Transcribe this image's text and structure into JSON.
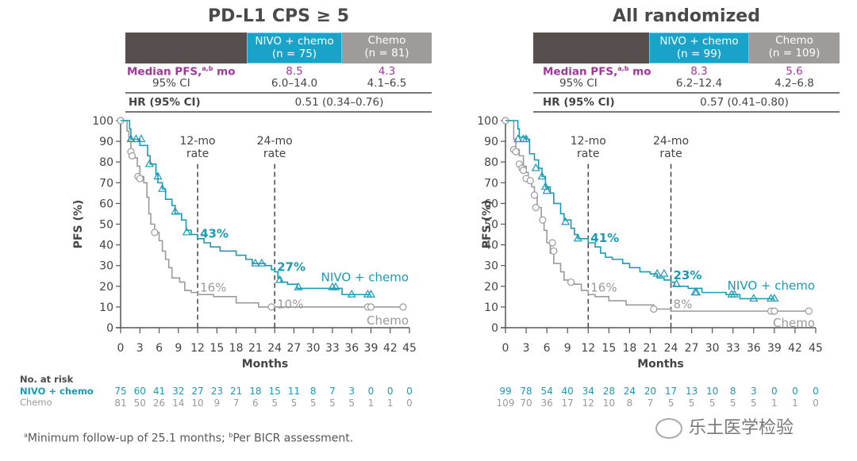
{
  "colors": {
    "nivo": "#1a9ab5",
    "chemo": "#9a9a9a",
    "magenta": "#a1379a",
    "header_dark": "#574f4e",
    "header_nivo": "#1aa3c9",
    "header_chemo": "#9f9b9a"
  },
  "panels": [
    {
      "title": "PD-L1 CPS ≥ 5",
      "table": {
        "nivo_header": [
          "NIVO + chemo",
          "(n = 75)"
        ],
        "chemo_header": [
          "Chemo",
          "(n = 81)"
        ],
        "median_label": "Median PFS,",
        "median_sup": "a,b",
        "median_unit": " mo",
        "median_nivo": "8.5",
        "median_chemo": "4.3",
        "ci_label": "95% CI",
        "ci_nivo": "6.0–14.0",
        "ci_chemo": "4.1–6.5",
        "hr_label": "HR (95% CI)",
        "hr_value": "0.51 (0.34–0.76)"
      },
      "risk": {
        "label": "No. at risk",
        "nivo_label": "NIVO + chemo",
        "chemo_label": "Chemo",
        "nivo": [
          75,
          60,
          41,
          32,
          27,
          23,
          21,
          18,
          15,
          11,
          8,
          7,
          3,
          0,
          0,
          0
        ],
        "chemo": [
          81,
          50,
          26,
          14,
          10,
          9,
          7,
          6,
          5,
          5,
          5,
          5,
          5,
          1,
          1,
          0
        ]
      }
    },
    {
      "title": "All randomized",
      "table": {
        "nivo_header": [
          "NIVO + chemo",
          "(n = 99)"
        ],
        "chemo_header": [
          "Chemo",
          "(n = 109)"
        ],
        "median_label": "Median PFS,",
        "median_sup": "a,b",
        "median_unit": " mo",
        "median_nivo": "8.3",
        "median_chemo": "5.6",
        "ci_label": "95% CI",
        "ci_nivo": "6.2–12.4",
        "ci_chemo": "4.2–6.8",
        "hr_label": "HR (95% CI)",
        "hr_value": "0.57 (0.41–0.80)"
      },
      "risk": {
        "label": "",
        "nivo_label": "",
        "chemo_label": "",
        "nivo": [
          99,
          78,
          54,
          40,
          34,
          28,
          24,
          20,
          17,
          13,
          10,
          8,
          3,
          0,
          0,
          0
        ],
        "chemo": [
          109,
          70,
          36,
          17,
          12,
          10,
          8,
          7,
          5,
          5,
          5,
          5,
          5,
          1,
          1,
          0
        ]
      }
    }
  ],
  "chart_data": [
    {
      "type": "line",
      "title": "PD-L1 CPS ≥ 5",
      "xlabel": "Months",
      "ylabel": "PFS (%)",
      "xlim": [
        0,
        45
      ],
      "ylim": [
        0,
        100
      ],
      "xticks": [
        0,
        3,
        6,
        9,
        12,
        15,
        18,
        21,
        24,
        27,
        30,
        33,
        36,
        39,
        42,
        45
      ],
      "yticks": [
        0,
        10,
        20,
        30,
        40,
        50,
        60,
        70,
        80,
        90,
        100
      ],
      "reference_lines": [
        {
          "x": 12,
          "label": [
            "12-mo",
            "rate"
          ]
        },
        {
          "x": 24,
          "label": [
            "24-mo",
            "rate"
          ]
        }
      ],
      "series": [
        {
          "name": "NIVO + chemo",
          "label": "NIVO + chemo",
          "step": true,
          "points": [
            [
              0,
              100
            ],
            [
              1,
              100
            ],
            [
              1.4,
              96
            ],
            [
              1.6,
              91
            ],
            [
              3,
              91
            ],
            [
              3,
              88
            ],
            [
              4.2,
              83
            ],
            [
              4.6,
              79
            ],
            [
              5.5,
              74
            ],
            [
              5.8,
              70
            ],
            [
              6.5,
              67
            ],
            [
              7,
              62
            ],
            [
              8,
              59
            ],
            [
              8.5,
              55
            ],
            [
              9.5,
              52
            ],
            [
              10.2,
              47
            ],
            [
              11,
              45
            ],
            [
              12,
              43
            ],
            [
              13,
              41
            ],
            [
              14,
              39
            ],
            [
              15.5,
              37
            ],
            [
              18,
              35
            ],
            [
              19.5,
              33
            ],
            [
              20.5,
              31
            ],
            [
              22.5,
              30
            ],
            [
              23.5,
              28
            ],
            [
              24,
              27
            ],
            [
              24.5,
              24
            ],
            [
              25,
              22
            ],
            [
              26,
              21
            ],
            [
              27.5,
              19
            ],
            [
              33,
              19
            ],
            [
              34.5,
              16
            ],
            [
              39,
              16
            ]
          ],
          "censors": [
            [
              1.6,
              91
            ],
            [
              2.4,
              91
            ],
            [
              3.2,
              91
            ],
            [
              4.5,
              79
            ],
            [
              5.8,
              73
            ],
            [
              6.5,
              67
            ],
            [
              8.5,
              56
            ],
            [
              10.3,
              46
            ],
            [
              21,
              31
            ],
            [
              22,
              31
            ],
            [
              24.8,
              23
            ],
            [
              27.7,
              19.5
            ],
            [
              33,
              19.5
            ],
            [
              33.5,
              19.5
            ],
            [
              36,
              16
            ],
            [
              38.5,
              16
            ],
            [
              39,
              16
            ]
          ],
          "annotations": [
            {
              "x": 12,
              "text": "43%"
            },
            {
              "x": 24,
              "text": "27%"
            }
          ]
        },
        {
          "name": "Chemo",
          "label": "Chemo",
          "step": true,
          "points": [
            [
              0,
              100
            ],
            [
              0.5,
              100
            ],
            [
              1,
              95
            ],
            [
              1.3,
              90
            ],
            [
              1.6,
              85
            ],
            [
              2,
              82
            ],
            [
              2.6,
              78
            ],
            [
              3,
              73
            ],
            [
              3.6,
              70
            ],
            [
              4.1,
              63
            ],
            [
              4.4,
              55
            ],
            [
              4.7,
              50
            ],
            [
              5.3,
              46
            ],
            [
              6,
              42
            ],
            [
              6.5,
              37
            ],
            [
              7,
              33
            ],
            [
              7.5,
              29
            ],
            [
              8,
              24
            ],
            [
              9.2,
              22
            ],
            [
              10,
              18
            ],
            [
              11,
              17
            ],
            [
              12,
              16
            ],
            [
              14.5,
              15
            ],
            [
              18,
              12
            ],
            [
              21.5,
              10
            ],
            [
              44,
              10
            ]
          ],
          "censors": [
            [
              0,
              100
            ],
            [
              1.6,
              85
            ],
            [
              1.8,
              83
            ],
            [
              2.7,
              73
            ],
            [
              3,
              72
            ],
            [
              5.3,
              46
            ],
            [
              23.5,
              10
            ],
            [
              38.5,
              10
            ],
            [
              39,
              10
            ],
            [
              44,
              10
            ]
          ],
          "annotations": [
            {
              "x": 12,
              "text": "16%"
            },
            {
              "x": 24,
              "text": "10%"
            }
          ]
        }
      ]
    },
    {
      "type": "line",
      "title": "All randomized",
      "xlabel": "Months",
      "ylabel": "PFS (%)",
      "xlim": [
        0,
        45
      ],
      "ylim": [
        0,
        100
      ],
      "xticks": [
        0,
        3,
        6,
        9,
        12,
        15,
        18,
        21,
        24,
        27,
        30,
        33,
        36,
        39,
        42,
        45
      ],
      "yticks": [
        0,
        10,
        20,
        30,
        40,
        50,
        60,
        70,
        80,
        90,
        100
      ],
      "reference_lines": [
        {
          "x": 12,
          "label": [
            "12-mo",
            "rate"
          ]
        },
        {
          "x": 24,
          "label": [
            "24-mo",
            "rate"
          ]
        }
      ],
      "series": [
        {
          "name": "NIVO + chemo",
          "label": "NIVO + chemo",
          "step": true,
          "points": [
            [
              0,
              100
            ],
            [
              1.5,
              100
            ],
            [
              1.8,
              96
            ],
            [
              2,
              92
            ],
            [
              3,
              91
            ],
            [
              3.5,
              84
            ],
            [
              4.2,
              81
            ],
            [
              4.8,
              77
            ],
            [
              5.3,
              73
            ],
            [
              5.8,
              68
            ],
            [
              6.5,
              65
            ],
            [
              7,
              60
            ],
            [
              8,
              55
            ],
            [
              8.5,
              52
            ],
            [
              9.5,
              48
            ],
            [
              10,
              45
            ],
            [
              10.5,
              43
            ],
            [
              12,
              41
            ],
            [
              13,
              39
            ],
            [
              13.8,
              36
            ],
            [
              14.5,
              34
            ],
            [
              15.5,
              33
            ],
            [
              17,
              31
            ],
            [
              18,
              29
            ],
            [
              19.5,
              27
            ],
            [
              21,
              26
            ],
            [
              22,
              24
            ],
            [
              23,
              23
            ],
            [
              24,
              22
            ],
            [
              24.5,
              20
            ],
            [
              26.5,
              19
            ],
            [
              28.5,
              17
            ],
            [
              32,
              16
            ],
            [
              34,
              14
            ],
            [
              39,
              14
            ]
          ],
          "censors": [
            [
              1.8,
              91
            ],
            [
              2.6,
              91
            ],
            [
              3,
              91
            ],
            [
              4.4,
              77
            ],
            [
              5.3,
              73
            ],
            [
              5.8,
              68
            ],
            [
              6,
              66
            ],
            [
              8.7,
              51
            ],
            [
              10.5,
              43
            ],
            [
              22,
              26
            ],
            [
              23,
              26
            ],
            [
              24.8,
              21
            ],
            [
              27.5,
              17
            ],
            [
              27.7,
              17
            ],
            [
              32.8,
              16
            ],
            [
              33.2,
              16
            ],
            [
              36,
              14
            ],
            [
              38.5,
              14
            ],
            [
              39,
              14
            ]
          ],
          "annotations": [
            {
              "x": 12,
              "text": "41%"
            },
            {
              "x": 24,
              "text": "23%"
            }
          ]
        },
        {
          "name": "Chemo",
          "label": "Chemo",
          "step": true,
          "points": [
            [
              0,
              100
            ],
            [
              1,
              100
            ],
            [
              1.2,
              91
            ],
            [
              1.5,
              86
            ],
            [
              2,
              83
            ],
            [
              2.6,
              78
            ],
            [
              3,
              75
            ],
            [
              3.3,
              72
            ],
            [
              3.8,
              68
            ],
            [
              4.2,
              64
            ],
            [
              4.6,
              58
            ],
            [
              5.2,
              52
            ],
            [
              5.6,
              47
            ],
            [
              6,
              41
            ],
            [
              6.5,
              36
            ],
            [
              7,
              31
            ],
            [
              8,
              27
            ],
            [
              8.5,
              23
            ],
            [
              9.5,
              21
            ],
            [
              11,
              18
            ],
            [
              12,
              16
            ],
            [
              13,
              15
            ],
            [
              15,
              13
            ],
            [
              17.5,
              11
            ],
            [
              21.5,
              9
            ],
            [
              24,
              8
            ],
            [
              44,
              8
            ]
          ],
          "censors": [
            [
              0,
              100
            ],
            [
              1.2,
              86
            ],
            [
              1.5,
              85
            ],
            [
              2,
              79
            ],
            [
              2.4,
              77
            ],
            [
              2.6,
              76
            ],
            [
              3,
              72
            ],
            [
              3.6,
              71
            ],
            [
              4.2,
              64
            ],
            [
              4.4,
              58
            ],
            [
              5.4,
              52
            ],
            [
              6.8,
              41
            ],
            [
              7,
              37
            ],
            [
              9.5,
              22
            ],
            [
              21.5,
              9
            ],
            [
              38.5,
              8
            ],
            [
              39,
              8
            ],
            [
              44,
              8
            ]
          ],
          "annotations": [
            {
              "x": 12,
              "text": "16%"
            },
            {
              "x": 24,
              "text": "8%"
            }
          ]
        }
      ]
    }
  ],
  "footnote": {
    "sup_a": "a",
    "text_a": "Minimum follow-up of 25.1 months; ",
    "sup_b": "b",
    "text_b": "Per BICR assessment."
  },
  "watermark": "乐土医学检验"
}
